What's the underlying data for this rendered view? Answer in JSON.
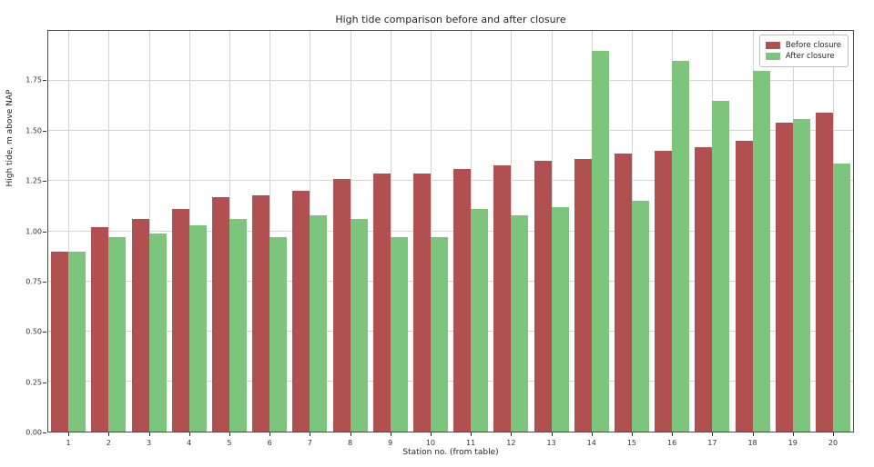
{
  "figure_title": "High tide comparison before and after closure",
  "chart_data": {
    "type": "bar",
    "title": "High tide comparison before and after closure",
    "xlabel": "Station no. (from table)",
    "ylabel": "High tide, m above NAP",
    "categories": [
      "1",
      "2",
      "3",
      "4",
      "5",
      "6",
      "7",
      "8",
      "9",
      "10",
      "11",
      "12",
      "13",
      "14",
      "15",
      "16",
      "17",
      "18",
      "19",
      "20"
    ],
    "series": [
      {
        "name": "Before closure",
        "color": "#b05050",
        "values": [
          0.9,
          1.02,
          1.06,
          1.11,
          1.17,
          1.18,
          1.2,
          1.26,
          1.29,
          1.29,
          1.31,
          1.33,
          1.35,
          1.36,
          1.39,
          1.4,
          1.42,
          1.45,
          1.54,
          1.59
        ]
      },
      {
        "name": "After closure",
        "color": "#7dc57d",
        "values": [
          0.9,
          0.97,
          0.99,
          1.03,
          1.06,
          0.97,
          1.08,
          1.06,
          0.97,
          0.97,
          1.11,
          1.08,
          1.12,
          1.9,
          1.15,
          1.85,
          1.65,
          1.8,
          1.56,
          1.34
        ]
      }
    ],
    "ylim": [
      0.0,
      2.0
    ],
    "yticks": [
      0.0,
      0.25,
      0.5,
      0.75,
      1.0,
      1.25,
      1.5,
      1.75
    ],
    "ytick_labels": [
      "0.00",
      "0.25",
      "0.50",
      "0.75",
      "1.00",
      "1.25",
      "1.50",
      "1.75"
    ],
    "grid": true,
    "legend_position": "upper right"
  },
  "colors": {
    "before_closure": "#b05050",
    "after_closure": "#7dc57d",
    "gridline": "#d4d4d4",
    "spine": "#4a4a4a",
    "text": "#262626"
  }
}
